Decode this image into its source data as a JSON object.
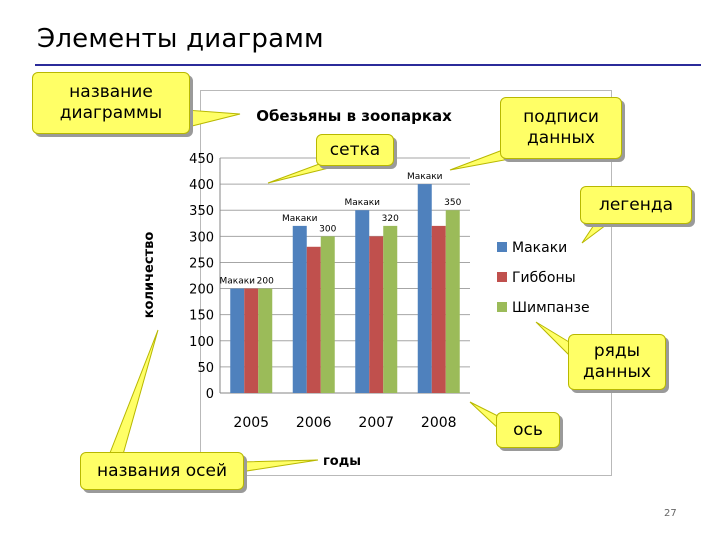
{
  "slide": {
    "title": "Элементы диаграмм",
    "page_number": "27"
  },
  "callouts": {
    "chart_title": "название\nдиаграммы",
    "grid": "сетка",
    "data_labels": "подписи\nданных",
    "legend": "легенда",
    "data_series": "ряды\nданных",
    "axis": "ось",
    "axis_titles": "названия осей"
  },
  "colors": {
    "callout_fill": "#ffff66",
    "title_rule": "#2b2b9a",
    "series_1": "#4f81bd",
    "series_2": "#c0504d",
    "series_3": "#9bbb59"
  },
  "chart_data": {
    "type": "bar",
    "title": "Обезьяны в зоопарках",
    "xlabel": "годы",
    "ylabel": "количество",
    "categories": [
      "2005",
      "2006",
      "2007",
      "2008"
    ],
    "ylim": [
      0,
      450
    ],
    "yticks": [
      "0",
      "50",
      "100",
      "150",
      "200",
      "250",
      "300",
      "350",
      "400",
      "450"
    ],
    "grid": true,
    "legend_position": "right",
    "series": [
      {
        "name": "Макаки",
        "values": [
          200,
          320,
          350,
          400
        ],
        "labels": [
          "Макаки",
          "Макаки",
          "Макаки",
          "Макаки"
        ]
      },
      {
        "name": "Гиббоны",
        "values": [
          200,
          280,
          300,
          320
        ],
        "labels": []
      },
      {
        "name": "Шимпанзе",
        "values": [
          200,
          300,
          320,
          350
        ],
        "labels": [
          "200",
          "300",
          "320",
          "350"
        ]
      }
    ]
  }
}
